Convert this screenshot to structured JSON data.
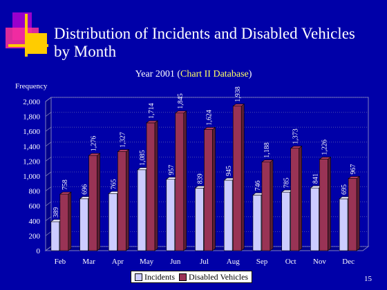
{
  "slide": {
    "title_line1": "Distribution of Incidents and Disabled Vehicles",
    "title_line2": "by Month",
    "subtitle_pre": "Year 2001 (",
    "subtitle_highlight": "Chart II Database",
    "subtitle_post": ")",
    "page_number": "15",
    "background_color": "#0000a8",
    "logo_icon": "color-squares-logo-icon"
  },
  "chart_data": {
    "type": "bar",
    "title": "",
    "xlabel": "",
    "ylabel": "Frequency",
    "ylim": [
      0,
      2000
    ],
    "yticks": [
      "0",
      "200",
      "400",
      "600",
      "800",
      "1,000",
      "1,200",
      "1,400",
      "1,600",
      "1,800",
      "2,000"
    ],
    "categories": [
      "Feb",
      "Mar",
      "Apr",
      "May",
      "Jun",
      "Jul",
      "Aug",
      "Sep",
      "Oct",
      "Nov",
      "Dec"
    ],
    "series": [
      {
        "name": "Incidents",
        "color": "#ccccff",
        "values": [
          389,
          696,
          765,
          1085,
          957,
          839,
          945,
          746,
          785,
          841,
          695
        ],
        "labels": [
          "389",
          "696",
          "765",
          "1,085",
          "957",
          "839",
          "945",
          "746",
          "785",
          "841",
          "695"
        ]
      },
      {
        "name": "Disabled Vehicles",
        "color": "#993355",
        "values": [
          758,
          1276,
          1327,
          1714,
          1845,
          1624,
          1938,
          1188,
          1373,
          1226,
          967
        ],
        "labels": [
          "758",
          "1,276",
          "1,327",
          "1,714",
          "1,845",
          "1,624",
          "1,938",
          "1,188",
          "1,373",
          "1,226",
          "967"
        ]
      }
    ],
    "grid": true,
    "legend_position": "bottom"
  }
}
